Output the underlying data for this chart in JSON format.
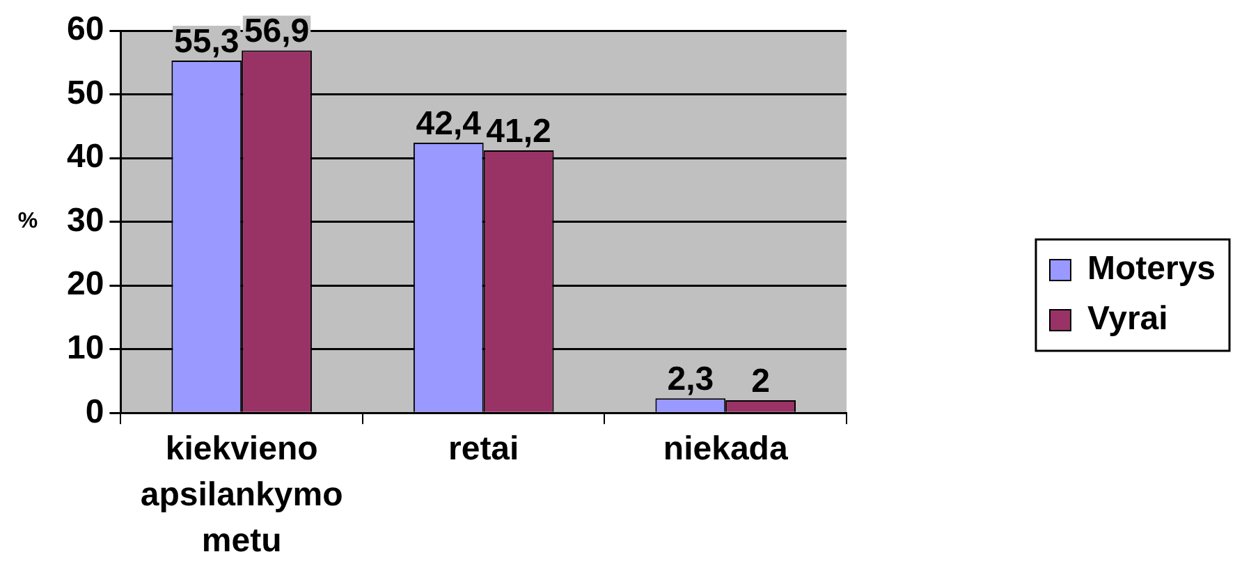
{
  "chart_data": {
    "type": "bar",
    "categories": [
      "kiekvieno apsilankymo metu",
      "retai",
      "niekada"
    ],
    "ylabel": "%",
    "series": [
      {
        "name": "Moterys",
        "color": "#9999ff",
        "values": [
          55.3,
          42.4,
          2.3
        ],
        "value_labels": [
          "55,3",
          "42,4",
          "2,3"
        ]
      },
      {
        "name": "Vyrai",
        "color": "#993366",
        "values": [
          56.9,
          41.2,
          2
        ],
        "value_labels": [
          "56,9",
          "41,2",
          "2"
        ]
      }
    ],
    "ylim": [
      0,
      60
    ],
    "yticks": [
      0,
      10,
      20,
      30,
      40,
      50,
      60
    ],
    "grid": "y",
    "legend": "right"
  }
}
